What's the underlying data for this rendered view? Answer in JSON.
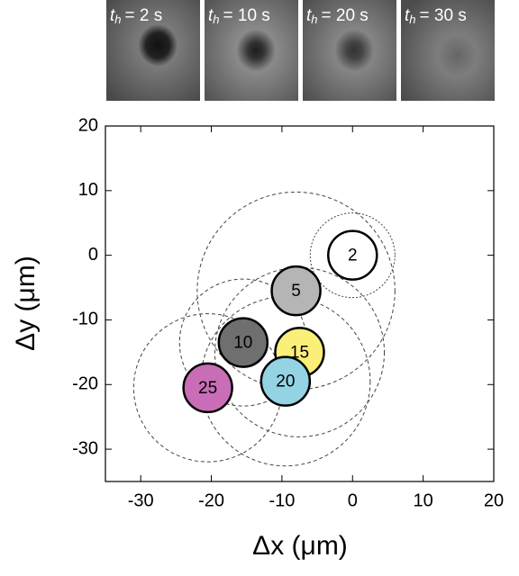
{
  "chart_data": {
    "type": "scatter",
    "image_label_var": "t",
    "image_label_sub": "h",
    "image_labels": [
      "= 2 s",
      "= 10 s",
      "= 20 s",
      "= 30 s"
    ],
    "xlabel": "Δx (μm)",
    "ylabel": "Δy (μm)",
    "xlim": [
      -35,
      20
    ],
    "ylim": [
      -35,
      20
    ],
    "xticks": [
      -30,
      -20,
      -10,
      0,
      10,
      20
    ],
    "yticks": [
      -30,
      -20,
      -10,
      0,
      10,
      20
    ],
    "series": [
      {
        "labels": [
          "2",
          "5",
          "10",
          "15",
          "20",
          "25"
        ],
        "x": [
          0,
          -8,
          -15.5,
          -7.5,
          -9.5,
          -20.5
        ],
        "values": [
          0,
          -5.5,
          -13.5,
          -15,
          -19.5,
          -20.5
        ],
        "radius": [
          6,
          14,
          9,
          12,
          12,
          10.5
        ],
        "colors": [
          "#ffffff",
          "#b5b5b5",
          "#6f6f6f",
          "#fbef7a",
          "#93d3e4",
          "#c96db6"
        ]
      }
    ]
  }
}
